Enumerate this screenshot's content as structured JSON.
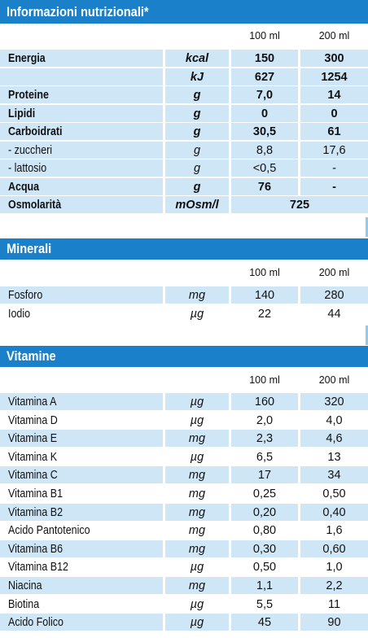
{
  "nutrition": {
    "title": "Informazioni nutrizionali*",
    "col1": "100 ml",
    "col2": "200 ml",
    "rows": [
      {
        "name": "Energia",
        "unit": "kcal",
        "v1": "150",
        "v2": "300"
      },
      {
        "name": "",
        "unit": "kJ",
        "v1": "627",
        "v2": "1254"
      },
      {
        "name": "Proteine",
        "unit": "g",
        "v1": "7,0",
        "v2": "14"
      },
      {
        "name": "Lipidi",
        "unit": "g",
        "v1": "0",
        "v2": "0"
      },
      {
        "name": "Carboidrati",
        "unit": "g",
        "v1": "30,5",
        "v2": "61"
      },
      {
        "name": " - zuccheri",
        "unit": "g",
        "v1": "8,8",
        "v2": "17,6"
      },
      {
        "name": " - lattosio",
        "unit": "g",
        "v1": "<0,5",
        "v2": "-"
      },
      {
        "name": "Acqua",
        "unit": "g",
        "v1": "76",
        "v2": "-"
      },
      {
        "name": "Osmolarità",
        "unit": "mOsm/l",
        "v1": "725"
      }
    ]
  },
  "minerals": {
    "title": "Minerali",
    "col1": "100 ml",
    "col2": "200 ml",
    "rows": [
      {
        "name": "Fosforo",
        "unit": "mg",
        "v1": "140",
        "v2": "280"
      },
      {
        "name": "Iodio",
        "unit": "µg",
        "v1": "22",
        "v2": "44"
      }
    ]
  },
  "vitamins": {
    "title": "Vitamine",
    "col1": "100 ml",
    "col2": "200 ml",
    "rows": [
      {
        "name": "Vitamina A",
        "unit": "µg",
        "v1": "160",
        "v2": "320"
      },
      {
        "name": "Vitamina D",
        "unit": "µg",
        "v1": "2,0",
        "v2": "4,0"
      },
      {
        "name": "Vitamina E",
        "unit": "mg",
        "v1": "2,3",
        "v2": "4,6"
      },
      {
        "name": "Vitamina K",
        "unit": "µg",
        "v1": "6,5",
        "v2": "13"
      },
      {
        "name": "Vitamina C",
        "unit": "mg",
        "v1": "17",
        "v2": "34"
      },
      {
        "name": "Vitamina B1",
        "unit": "mg",
        "v1": "0,25",
        "v2": "0,50"
      },
      {
        "name": "Vitamina B2",
        "unit": "mg",
        "v1": "0,20",
        "v2": "0,40"
      },
      {
        "name": "Acido Pantotenico",
        "unit": "mg",
        "v1": "0,80",
        "v2": "1,6"
      },
      {
        "name": "Vitamina B6",
        "unit": "mg",
        "v1": "0,30",
        "v2": "0,60"
      },
      {
        "name": "Vitamina B12",
        "unit": "µg",
        "v1": "0,50",
        "v2": "1,0"
      },
      {
        "name": "Niacina",
        "unit": "mg",
        "v1": "1,1",
        "v2": "2,2"
      },
      {
        "name": "Biotina",
        "unit": "µg",
        "v1": "5,5",
        "v2": "11"
      },
      {
        "name": "Acido Folico",
        "unit": "µg",
        "v1": "45",
        "v2": "90"
      }
    ]
  }
}
